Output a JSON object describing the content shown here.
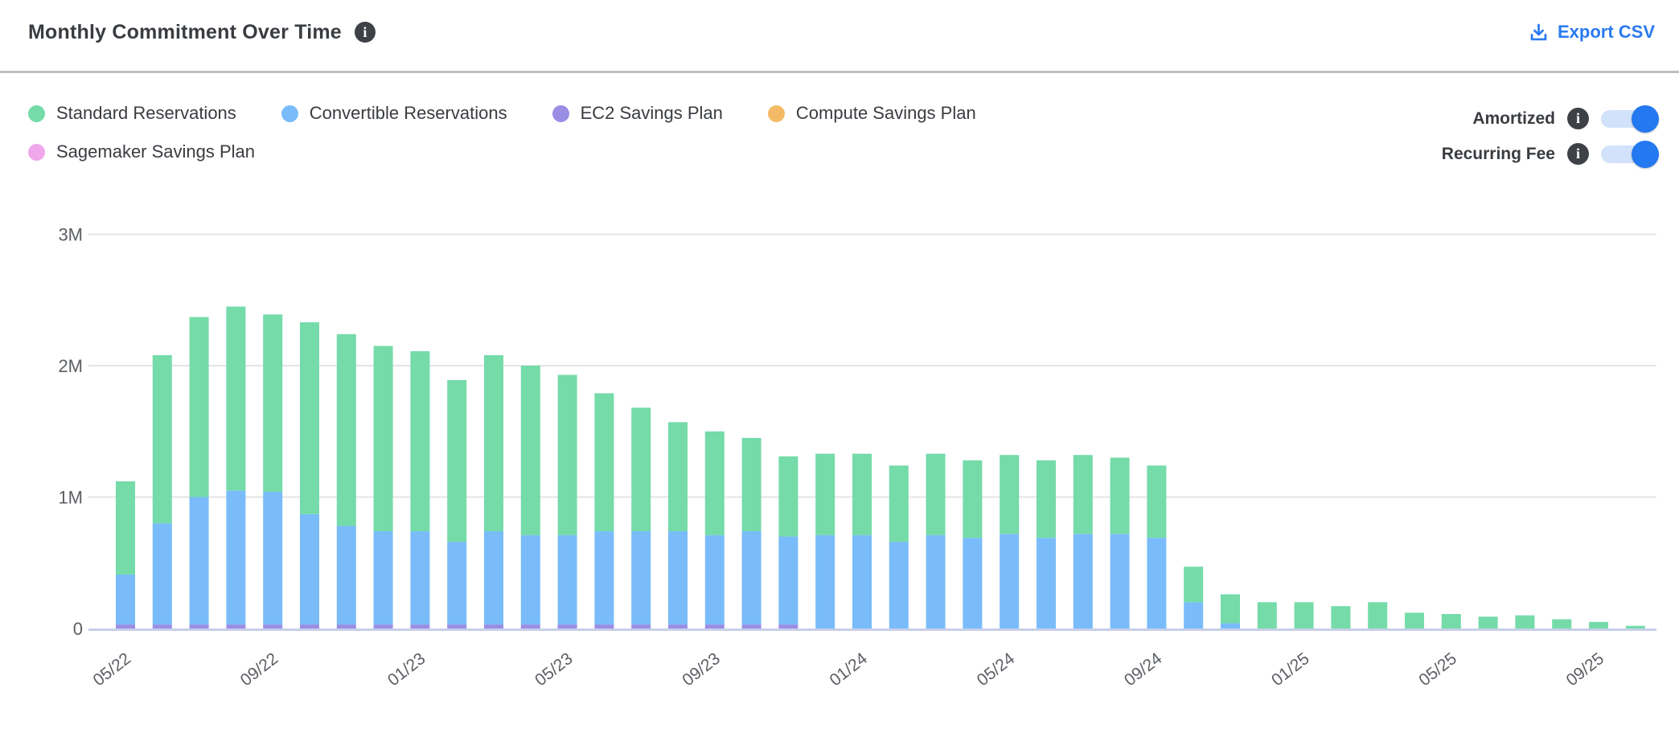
{
  "header": {
    "title": "Monthly Commitment Over Time",
    "title_info_icon": "info-icon",
    "export_label": "Export CSV",
    "accent_color": "#2a7af0"
  },
  "legend": {
    "items": [
      {
        "label": "Standard Reservations",
        "color": "#74dba9",
        "row": 1
      },
      {
        "label": "Convertible Reservations",
        "color": "#79bcf9",
        "row": 1
      },
      {
        "label": "EC2 Savings Plan",
        "color": "#9a8de4",
        "row": 1
      },
      {
        "label": "Compute Savings Plan",
        "color": "#f4ba66",
        "row": 1
      },
      {
        "label": "Sagemaker Savings Plan",
        "color": "#f1a7eb",
        "row": 2
      }
    ]
  },
  "toggles": [
    {
      "label": "Amortized",
      "state": "on"
    },
    {
      "label": "Recurring Fee",
      "state": "on"
    }
  ],
  "chart_data": {
    "type": "bar",
    "stacked": true,
    "title": "Monthly Commitment Over Time",
    "unit": "millions USD",
    "ylim": [
      0,
      3
    ],
    "y_ticks": [
      "0",
      "1M",
      "2M",
      "3M"
    ],
    "grid": true,
    "legend_position": "top-left",
    "x_tick_labels": [
      "05/22",
      "09/22",
      "01/23",
      "05/23",
      "09/23",
      "01/24",
      "05/24",
      "09/24",
      "01/25",
      "05/25",
      "09/25"
    ],
    "x_tick_every": 4,
    "months": [
      "05/22",
      "06/22",
      "07/22",
      "08/22",
      "09/22",
      "10/22",
      "11/22",
      "12/22",
      "01/23",
      "02/23",
      "03/23",
      "04/23",
      "05/23",
      "06/23",
      "07/23",
      "08/23",
      "09/23",
      "10/23",
      "11/23",
      "12/23",
      "01/24",
      "02/24",
      "03/24",
      "04/24",
      "05/24",
      "06/24",
      "07/24",
      "08/24",
      "09/24",
      "10/24",
      "11/24",
      "12/24",
      "01/25",
      "02/25",
      "03/25",
      "04/25",
      "05/25",
      "06/25",
      "07/25",
      "08/25",
      "09/25",
      "10/25"
    ],
    "series": [
      {
        "name": "Standard Reservations",
        "color": "#74dba9",
        "values": [
          0.71,
          1.28,
          1.37,
          1.4,
          1.35,
          1.46,
          1.46,
          1.41,
          1.37,
          1.23,
          1.34,
          1.29,
          1.22,
          1.05,
          0.94,
          0.83,
          0.79,
          0.71,
          0.61,
          0.62,
          0.62,
          0.58,
          0.62,
          0.59,
          0.6,
          0.59,
          0.6,
          0.58,
          0.55,
          0.27,
          0.22,
          0.2,
          0.2,
          0.17,
          0.2,
          0.12,
          0.11,
          0.09,
          0.1,
          0.07,
          0.05,
          0.02
        ]
      },
      {
        "name": "Convertible Reservations",
        "color": "#79bcf9",
        "values": [
          0.38,
          0.77,
          0.97,
          1.02,
          1.01,
          0.84,
          0.75,
          0.71,
          0.71,
          0.63,
          0.71,
          0.68,
          0.68,
          0.71,
          0.71,
          0.71,
          0.68,
          0.71,
          0.67,
          0.71,
          0.71,
          0.66,
          0.71,
          0.69,
          0.72,
          0.69,
          0.72,
          0.72,
          0.69,
          0.2,
          0.04,
          0,
          0,
          0,
          0,
          0,
          0,
          0,
          0,
          0,
          0,
          0
        ]
      },
      {
        "name": "EC2 Savings Plan",
        "color": "#9a8de4",
        "values": [
          0.03,
          0.03,
          0.03,
          0.03,
          0.03,
          0.03,
          0.03,
          0.03,
          0.03,
          0.03,
          0.03,
          0.03,
          0.03,
          0.03,
          0.03,
          0.03,
          0.03,
          0.03,
          0.03,
          0,
          0,
          0,
          0,
          0,
          0,
          0,
          0,
          0,
          0,
          0,
          0,
          0,
          0,
          0,
          0,
          0,
          0,
          0,
          0,
          0,
          0,
          0
        ]
      },
      {
        "name": "Compute Savings Plan",
        "color": "#f4ba66",
        "values": [
          0,
          0,
          0,
          0,
          0,
          0,
          0,
          0,
          0,
          0,
          0,
          0,
          0,
          0,
          0,
          0,
          0,
          0,
          0,
          0,
          0,
          0,
          0,
          0,
          0,
          0,
          0,
          0,
          0,
          0,
          0,
          0,
          0,
          0,
          0,
          0,
          0,
          0,
          0,
          0,
          0,
          0
        ]
      },
      {
        "name": "Sagemaker Savings Plan",
        "color": "#f1a7eb",
        "values": [
          0,
          0,
          0,
          0,
          0,
          0,
          0,
          0,
          0,
          0,
          0,
          0,
          0,
          0,
          0,
          0,
          0,
          0,
          0,
          0,
          0,
          0,
          0,
          0,
          0,
          0,
          0,
          0,
          0,
          0,
          0,
          0,
          0,
          0,
          0,
          0,
          0,
          0,
          0,
          0,
          0,
          0
        ]
      }
    ]
  },
  "style": {
    "grid_color": "#e4e4e6",
    "baseline_color": "#c7cfe8",
    "axis_text_color": "#5b5e63"
  }
}
